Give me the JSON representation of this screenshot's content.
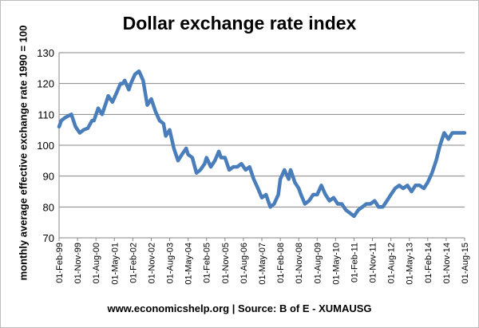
{
  "chart_data": {
    "type": "line",
    "title": "Dollar exchange rate index",
    "ylabel": "monthly average effective exchange rate 1990 = 100",
    "xlabel": "",
    "source": "www.economicshelp.org | Source: B of E - XUMAUSG",
    "ylim": [
      70,
      130
    ],
    "yticks": [
      70,
      80,
      90,
      100,
      110,
      120,
      130
    ],
    "xticks": [
      "01-Feb-99",
      "01-Nov-99",
      "01-Aug-00",
      "01-May-01",
      "01-Feb-02",
      "01-Nov-02",
      "01-Aug-03",
      "01-May-04",
      "01-Feb-05",
      "01-Nov-05",
      "01-Aug-06",
      "01-May-07",
      "01-Feb-08",
      "01-Nov-08",
      "01-Aug-09",
      "01-May-10",
      "01-Feb-11",
      "01-Nov-11",
      "01-Aug-12",
      "01-May-13",
      "01-Feb-14",
      "01-Nov-14",
      "01-Aug-15"
    ],
    "grid": true,
    "line_color": "#4a7ebb",
    "series": [
      {
        "name": "Dollar exchange rate index",
        "x": [
          1999.08,
          1999.17,
          1999.33,
          1999.58,
          1999.75,
          1999.92,
          2000.08,
          2000.25,
          2000.42,
          2000.5,
          2000.67,
          2000.83,
          2001.0,
          2001.08,
          2001.25,
          2001.42,
          2001.58,
          2001.67,
          2001.75,
          2001.92,
          2002.0,
          2002.17,
          2002.33,
          2002.5,
          2002.67,
          2002.83,
          2003.0,
          2003.17,
          2003.33,
          2003.42,
          2003.58,
          2003.75,
          2003.92,
          2004.08,
          2004.25,
          2004.33,
          2004.5,
          2004.67,
          2004.83,
          2005.0,
          2005.08,
          2005.25,
          2005.42,
          2005.58,
          2005.67,
          2005.83,
          2006.0,
          2006.17,
          2006.33,
          2006.5,
          2006.67,
          2006.83,
          2007.0,
          2007.17,
          2007.33,
          2007.5,
          2007.67,
          2007.83,
          2008.0,
          2008.08,
          2008.25,
          2008.42,
          2008.5,
          2008.67,
          2008.83,
          2008.92,
          2009.08,
          2009.25,
          2009.42,
          2009.58,
          2009.75,
          2009.92,
          2010.08,
          2010.25,
          2010.42,
          2010.58,
          2010.75,
          2010.92,
          2011.08,
          2011.25,
          2011.42,
          2011.58,
          2011.75,
          2011.92,
          2012.08,
          2012.25,
          2012.42,
          2012.58,
          2012.75,
          2012.92,
          2013.08,
          2013.25,
          2013.42,
          2013.58,
          2013.75,
          2013.92,
          2014.08,
          2014.25,
          2014.42,
          2014.58,
          2014.75,
          2014.92,
          2015.08,
          2015.25,
          2015.42,
          2015.58
        ],
        "values": [
          106,
          108,
          109,
          110,
          106,
          104,
          105,
          105.5,
          108,
          108,
          112,
          110,
          114,
          116,
          114,
          117,
          120,
          120,
          121,
          118,
          120,
          123,
          124,
          121,
          113,
          115,
          111,
          108,
          107,
          103,
          105,
          99,
          95,
          97,
          99,
          97,
          96,
          91,
          92,
          94,
          96,
          93,
          95,
          98,
          96,
          96,
          92,
          93,
          93,
          94,
          92,
          93,
          89,
          86,
          83,
          84,
          80,
          81,
          84,
          89,
          92,
          89,
          92,
          88,
          86,
          84,
          81,
          82,
          84,
          84,
          87,
          84,
          82,
          83,
          81,
          81,
          79,
          78,
          77,
          79,
          80,
          81,
          81,
          82,
          80,
          80,
          82,
          84,
          86,
          87,
          86,
          87,
          85,
          87,
          87,
          86,
          88,
          91,
          95,
          100,
          104,
          102,
          104,
          104,
          104,
          104
        ]
      }
    ]
  }
}
